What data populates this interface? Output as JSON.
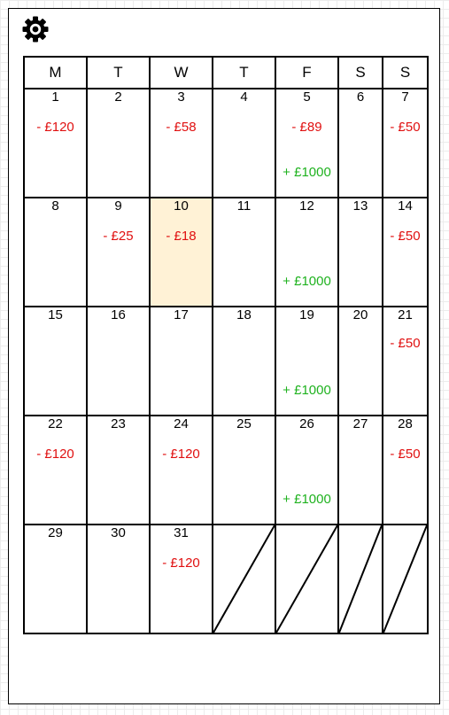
{
  "weekdays": [
    "M",
    "T",
    "W",
    "T",
    "F",
    "S",
    "S"
  ],
  "colors": {
    "expense": "#e01010",
    "income": "#1fb21f",
    "today_bg": "#fff2d6"
  },
  "today": 10,
  "icons": {
    "settings": "gear-icon"
  },
  "weeks": [
    [
      {
        "day": "1",
        "expense": "- £120",
        "expense_row": 1
      },
      {
        "day": "2"
      },
      {
        "day": "3",
        "expense": "- £58",
        "expense_row": 1
      },
      {
        "day": "4"
      },
      {
        "day": "5",
        "expense": "- £89",
        "expense_row": 1,
        "income": "+ £1000"
      },
      {
        "day": "6"
      },
      {
        "day": "7",
        "expense": "- £50",
        "expense_row": 1
      }
    ],
    [
      {
        "day": "8"
      },
      {
        "day": "9",
        "expense": "- £25",
        "expense_row": 1
      },
      {
        "day": "10",
        "expense": "- £18",
        "expense_row": 1
      },
      {
        "day": "11"
      },
      {
        "day": "12",
        "income": "+ £1000"
      },
      {
        "day": "13"
      },
      {
        "day": "14",
        "expense": "- £50",
        "expense_row": 1
      }
    ],
    [
      {
        "day": "15"
      },
      {
        "day": "16"
      },
      {
        "day": "17"
      },
      {
        "day": "18"
      },
      {
        "day": "19",
        "income": "+ £1000"
      },
      {
        "day": "20"
      },
      {
        "day": "21",
        "expense": "- £50",
        "expense_row": 0
      }
    ],
    [
      {
        "day": "22",
        "expense": "- £120",
        "expense_row": 1
      },
      {
        "day": "23"
      },
      {
        "day": "24",
        "expense": "- £120",
        "expense_row": 1
      },
      {
        "day": "25"
      },
      {
        "day": "26",
        "income": "+ £1000"
      },
      {
        "day": "27"
      },
      {
        "day": "28",
        "expense": "- £50",
        "expense_row": 1
      }
    ],
    [
      {
        "day": "29"
      },
      {
        "day": "30"
      },
      {
        "day": "31",
        "expense": "- £120",
        "expense_row": 1
      },
      {
        "blank": true
      },
      {
        "blank": true
      },
      {
        "blank": true
      },
      {
        "blank": true
      }
    ]
  ]
}
